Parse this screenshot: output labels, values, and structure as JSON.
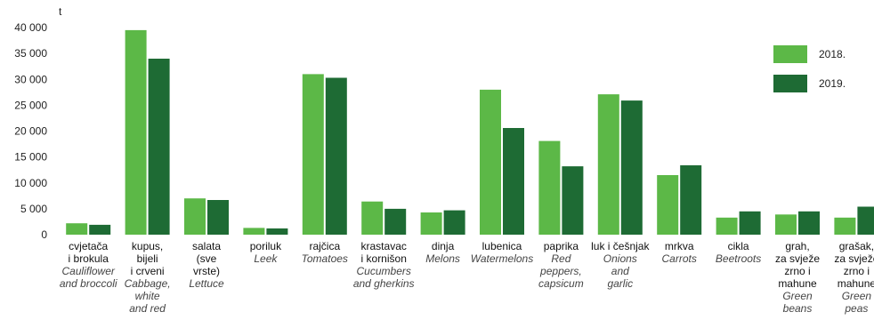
{
  "chart_data": {
    "type": "bar",
    "unit_label": "t",
    "ylim": [
      0,
      40000
    ],
    "yticks": [
      "0",
      "5 000",
      "10 000",
      "15 000",
      "20 000",
      "25 000",
      "30 000",
      "35 000",
      "40 000"
    ],
    "ytick_values": [
      0,
      5000,
      10000,
      15000,
      20000,
      25000,
      30000,
      35000,
      40000
    ],
    "grid": false,
    "legend_position": "top-right",
    "categories": [
      {
        "local": [
          "cvjetača",
          "i brokula"
        ],
        "en": [
          "Cauliflower",
          "and broccoli"
        ]
      },
      {
        "local": [
          "kupus,",
          "bijeli",
          "i crveni"
        ],
        "en": [
          "Cabbage,",
          "white",
          "and red"
        ]
      },
      {
        "local": [
          "salata",
          "(sve",
          "vrste)"
        ],
        "en": [
          "Lettuce"
        ]
      },
      {
        "local": [
          "poriluk"
        ],
        "en": [
          "Leek"
        ]
      },
      {
        "local": [
          "rajčica"
        ],
        "en": [
          "Tomatoes"
        ]
      },
      {
        "local": [
          "krastavac",
          "i kornišon"
        ],
        "en": [
          "Cucumbers",
          "and gherkins"
        ]
      },
      {
        "local": [
          "dinja"
        ],
        "en": [
          "Melons"
        ]
      },
      {
        "local": [
          "lubenica"
        ],
        "en": [
          "Watermelons"
        ]
      },
      {
        "local": [
          "paprika"
        ],
        "en": [
          "Red",
          "peppers,",
          "capsicum"
        ]
      },
      {
        "local": [
          "luk i češnjak"
        ],
        "en": [
          "Onions",
          "and",
          "garlic"
        ]
      },
      {
        "local": [
          "mrkva"
        ],
        "en": [
          "Carrots"
        ]
      },
      {
        "local": [
          "cikla"
        ],
        "en": [
          "Beetroots"
        ]
      },
      {
        "local": [
          "grah,",
          "za svježe",
          "zrno i",
          "mahune"
        ],
        "en": [
          "Green",
          "beans"
        ]
      },
      {
        "local": [
          "grašak,",
          "za svježe",
          "zrno i",
          "mahune"
        ],
        "en": [
          "Green",
          "peas"
        ]
      }
    ],
    "series": [
      {
        "name": "2018.",
        "color": "#5cb847",
        "values": [
          2200,
          39500,
          7000,
          1300,
          31000,
          6400,
          4300,
          28000,
          18100,
          27100,
          11500,
          3300,
          3900,
          3300
        ]
      },
      {
        "name": "2019.",
        "color": "#1e6b34",
        "values": [
          1900,
          34000,
          6700,
          1200,
          30300,
          5000,
          4700,
          20600,
          13200,
          25900,
          13400,
          4500,
          4500,
          5400
        ]
      }
    ]
  }
}
